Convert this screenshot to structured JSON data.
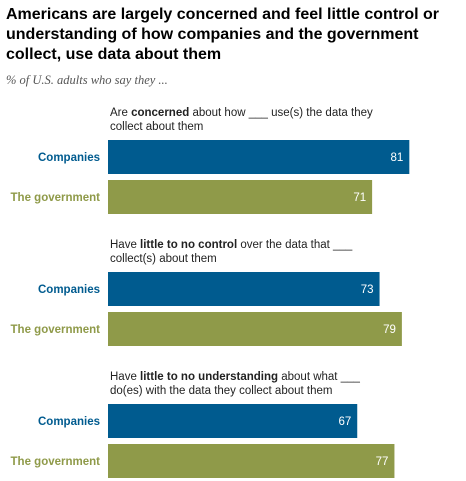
{
  "chart_data": {
    "type": "bar",
    "title": "Americans are largely concerned and feel little control or understanding of how companies and the government collect, use data about them",
    "subtitle": "% of U.S. adults who say they ...",
    "xlim": [
      0,
      100
    ],
    "colors": {
      "Companies": "#005b8f",
      "The government": "#8f9a49"
    },
    "groups": [
      {
        "caption_lines": [
          [
            {
              "t": "Are ",
              "b": false
            },
            {
              "t": "concerned",
              "b": true
            },
            {
              "t": " about how ___ use(s) the data they",
              "b": false
            }
          ],
          [
            {
              "t": "collect about them",
              "b": false
            }
          ]
        ],
        "categories": [
          "Companies",
          "The government"
        ],
        "values": [
          81,
          71
        ]
      },
      {
        "caption_lines": [
          [
            {
              "t": "Have ",
              "b": false
            },
            {
              "t": "little to no control",
              "b": true
            },
            {
              "t": " over the data that ___",
              "b": false
            }
          ],
          [
            {
              "t": "collect(s) about them",
              "b": false
            }
          ]
        ],
        "categories": [
          "Companies",
          "The government"
        ],
        "values": [
          73,
          79
        ]
      },
      {
        "caption_lines": [
          [
            {
              "t": "Have ",
              "b": false
            },
            {
              "t": "little to no understanding",
              "b": true
            },
            {
              "t": " about what ___",
              "b": false
            }
          ],
          [
            {
              "t": "do(es) with the data they collect about them",
              "b": false
            }
          ]
        ],
        "categories": [
          "Companies",
          "The government"
        ],
        "values": [
          67,
          77
        ]
      }
    ]
  }
}
